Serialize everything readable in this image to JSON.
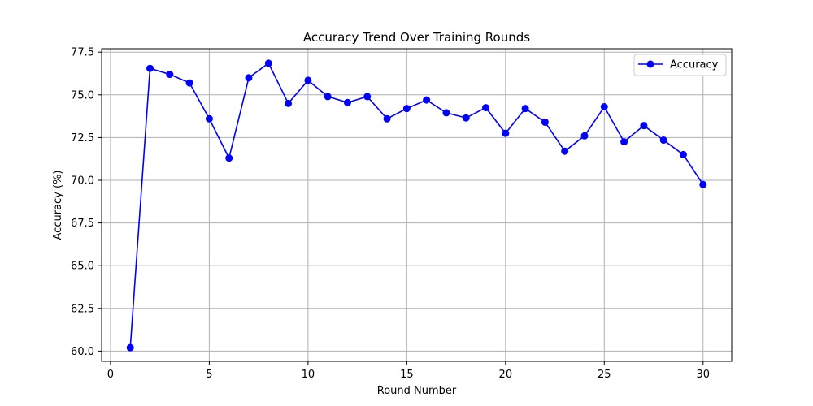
{
  "chart_data": {
    "type": "line",
    "title": "Accuracy Trend Over Training Rounds",
    "xlabel": "Round Number",
    "ylabel": "Accuracy (%)",
    "xlim": [
      -0.45,
      31.45
    ],
    "ylim": [
      59.4,
      77.7
    ],
    "xticks": [
      0,
      5,
      10,
      15,
      20,
      25,
      30
    ],
    "xtick_labels": [
      "0",
      "5",
      "10",
      "15",
      "20",
      "25",
      "30"
    ],
    "yticks": [
      60.0,
      62.5,
      65.0,
      67.5,
      70.0,
      72.5,
      75.0,
      77.5
    ],
    "ytick_labels": [
      "60.0",
      "62.5",
      "65.0",
      "67.5",
      "70.0",
      "72.5",
      "75.0",
      "77.5"
    ],
    "grid": true,
    "legend_position": "top-right",
    "x": [
      1,
      2,
      3,
      4,
      5,
      6,
      7,
      8,
      9,
      10,
      11,
      12,
      13,
      14,
      15,
      16,
      17,
      18,
      19,
      20,
      21,
      22,
      23,
      24,
      25,
      26,
      27,
      28,
      29,
      30
    ],
    "series": [
      {
        "name": "Accuracy",
        "color": "#0000ff",
        "marker": "circle",
        "values": [
          60.2,
          76.55,
          76.2,
          75.7,
          73.6,
          71.3,
          76.0,
          76.85,
          74.5,
          75.85,
          74.9,
          74.55,
          74.9,
          73.6,
          74.2,
          74.7,
          73.95,
          73.65,
          74.25,
          72.75,
          74.2,
          73.4,
          71.7,
          72.6,
          74.3,
          72.25,
          73.2,
          72.35,
          71.5,
          69.75
        ]
      }
    ]
  }
}
